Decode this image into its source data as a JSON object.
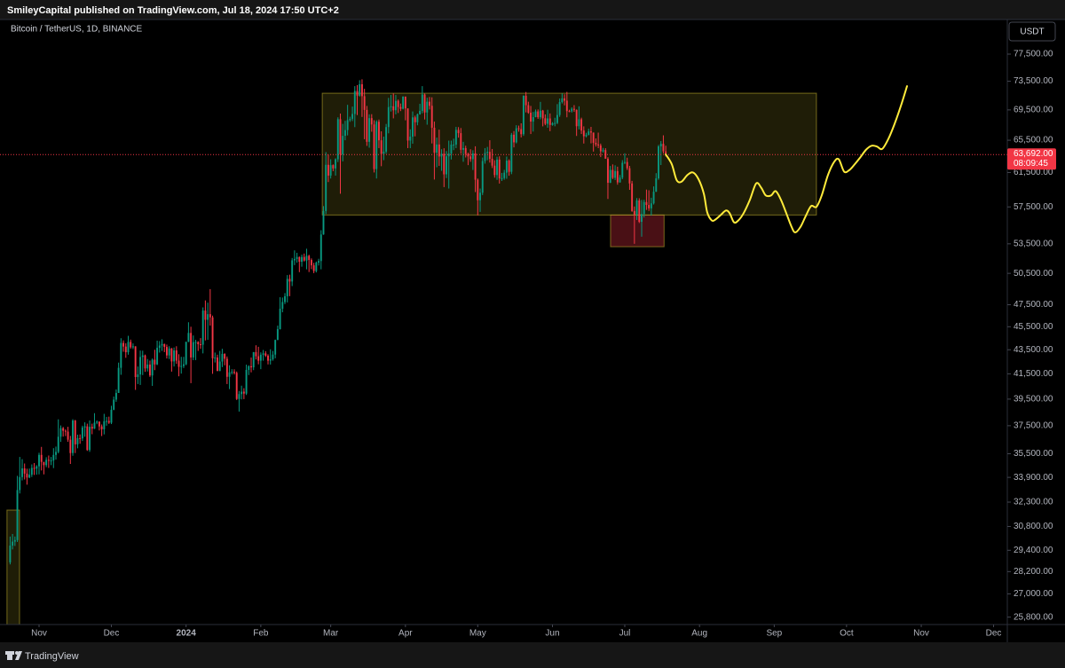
{
  "chart_data": {
    "type": "candlestick",
    "header": "SmileyCapital published on TradingView.com, Jul 18, 2024 17:50 UTC+2",
    "symbol": "Bitcoin / TetherUS, 1D, BINANCE",
    "currency": "USDT",
    "footer": "TradingView",
    "up_color": "#089981",
    "down_color": "#f23645",
    "log_scale": true,
    "grid": false,
    "ylim": [
      25430,
      82920
    ],
    "yticks": [
      {
        "value": 77500,
        "label": "77,500.00"
      },
      {
        "value": 73500,
        "label": "73,500.00"
      },
      {
        "value": 69500,
        "label": "69,500.00"
      },
      {
        "value": 65500,
        "label": "65,500.00"
      },
      {
        "value": 61500,
        "label": "61,500.00"
      },
      {
        "value": 57500,
        "label": "57,500.00"
      },
      {
        "value": 53500,
        "label": "53,500.00"
      },
      {
        "value": 50500,
        "label": "50,500.00"
      },
      {
        "value": 47500,
        "label": "47,500.00"
      },
      {
        "value": 45500,
        "label": "45,500.00"
      },
      {
        "value": 43500,
        "label": "43,500.00"
      },
      {
        "value": 41500,
        "label": "41,500.00"
      },
      {
        "value": 39500,
        "label": "39,500.00"
      },
      {
        "value": 37500,
        "label": "37,500.00"
      },
      {
        "value": 35500,
        "label": "35,500.00"
      },
      {
        "value": 33900,
        "label": "33,900.00"
      },
      {
        "value": 32300,
        "label": "32,300.00"
      },
      {
        "value": 30800,
        "label": "30,800.00"
      },
      {
        "value": 29400,
        "label": "29,400.00"
      },
      {
        "value": 28200,
        "label": "28,200.00"
      },
      {
        "value": 27000,
        "label": "27,000.00"
      },
      {
        "value": 25800,
        "label": "25,800.00"
      }
    ],
    "xlim": [
      -4.2,
      413.7
    ],
    "xticks": [
      {
        "value": 12,
        "label": "Nov"
      },
      {
        "value": 42,
        "label": "Dec"
      },
      {
        "value": 73,
        "label": "2024"
      },
      {
        "value": 104,
        "label": "Feb"
      },
      {
        "value": 133,
        "label": "Mar"
      },
      {
        "value": 164,
        "label": "Apr"
      },
      {
        "value": 194,
        "label": "May"
      },
      {
        "value": 225,
        "label": "Jun"
      },
      {
        "value": 255,
        "label": "Jul"
      },
      {
        "value": 286,
        "label": "Aug"
      },
      {
        "value": 317,
        "label": "Sep"
      },
      {
        "value": 347,
        "label": "Oct"
      },
      {
        "value": 378,
        "label": "Nov"
      },
      {
        "value": 408,
        "label": "Dec"
      }
    ],
    "open": [
      28715,
      29670,
      29900,
      29990,
      33070,
      33920,
      34500,
      34150,
      33890,
      34080,
      34530,
      34480,
      34640,
      35420,
      34940,
      34720,
      35080,
      35040,
      35040,
      35420,
      35630,
      36700,
      37320,
      37130,
      37070,
      36490,
      35550,
      37880,
      36160,
      36600,
      36580,
      37370,
      37450,
      35760,
      37420,
      37290,
      37720,
      37800,
      37450,
      37240,
      37830,
      37850,
      37720,
      38690,
      39460,
      39980,
      41990,
      44080,
      43770,
      43290,
      44170,
      43710,
      43790,
      41240,
      41450,
      42890,
      43020,
      41940,
      42260,
      41370,
      42660,
      42270,
      43660,
      43860,
      43990,
      43740,
      43020,
      43610,
      42520,
      43440,
      42580,
      42070,
      42140,
      42280,
      44180,
      44950,
      42850,
      44150,
      44160,
      43970,
      43930,
      46960,
      46120,
      46630,
      46340,
      42780,
      42840,
      41730,
      42510,
      43150,
      42740,
      41260,
      41620,
      41660,
      41580,
      39510,
      39890,
      40080,
      39930,
      41820,
      42120,
      42030,
      43300,
      42950,
      42580,
      43080,
      43190,
      43000,
      42580,
      42700,
      43090,
      44340,
      45290,
      47130,
      47750,
      48290,
      49960,
      49700,
      51800,
      51940,
      52140,
      51660,
      52140,
      51780,
      52260,
      51840,
      51300,
      50730,
      51570,
      51730,
      54480,
      57040,
      62430,
      61130,
      62390,
      61990,
      63110,
      68250,
      63720,
      66070,
      66810,
      68120,
      68300,
      68950,
      72120,
      71460,
      73070,
      71390,
      69500,
      65300,
      68390,
      67550,
      61910,
      67910,
      65490,
      63780,
      64060,
      67210,
      69880,
      69990,
      69450,
      70740,
      69890,
      69650,
      71330,
      69700,
      65460,
      65960,
      68490,
      67840,
      68900,
      69360,
      71620,
      69150,
      70620,
      70060,
      67120,
      63920,
      64960,
      63450,
      63790,
      61280,
      63470,
      63820,
      64940,
      64940,
      66840,
      66410,
      64290,
      64500,
      63770,
      63460,
      63120,
      63840,
      60640,
      58250,
      59120,
      62890,
      63890,
      64030,
      63160,
      62330,
      61190,
      63070,
      60790,
      60830,
      61480,
      62940,
      61580,
      66210,
      65230,
      67050,
      66940,
      66280,
      71450,
      70140,
      69120,
      67930,
      68530,
      69290,
      68510,
      69400,
      68370,
      67640,
      68350,
      67490,
      67710,
      67750,
      68810,
      70570,
      71080,
      70760,
      69340,
      69310,
      69650,
      69510,
      67320,
      68240,
      66750,
      66010,
      66190,
      66640,
      66490,
      65170,
      64960,
      64830,
      64100,
      64250,
      63180,
      60280,
      61810,
      60860,
      61670,
      60320,
      60890,
      62680,
      62770,
      62020,
      60200,
      57040,
      56640,
      58230,
      55850,
      56710,
      58050,
      57720,
      57340,
      57900,
      59230,
      60800,
      64720,
      65040,
      64090
    ],
    "high": [
      30200,
      30350,
      30200,
      34000,
      35280,
      35130,
      34830,
      34480,
      34490,
      34770,
      34860,
      34720,
      35570,
      35980,
      34940,
      35260,
      35380,
      35280,
      35890,
      36000,
      37970,
      37520,
      37410,
      37230,
      37420,
      36760,
      37980,
      37930,
      36850,
      36870,
      37500,
      37750,
      37650,
      37890,
      37650,
      38430,
      37890,
      37820,
      37590,
      38380,
      38150,
      38170,
      38990,
      39700,
      40250,
      42420,
      44490,
      44300,
      44050,
      44700,
      44370,
      44040,
      43800,
      42100,
      43430,
      43420,
      43090,
      42720,
      42590,
      42760,
      43500,
      44280,
      44240,
      44400,
      44020,
      43940,
      43800,
      43650,
      43690,
      43800,
      43120,
      42900,
      42900,
      44180,
      45900,
      45500,
      44730,
      44350,
      44230,
      44500,
      47250,
      47900,
      47690,
      48970,
      46500,
      43260,
      43080,
      43400,
      43580,
      43200,
      42930,
      42200,
      41880,
      41870,
      41690,
      40130,
      40550,
      40350,
      42250,
      42200,
      42840,
      43300,
      43880,
      43750,
      43280,
      43480,
      43380,
      43120,
      43540,
      43400,
      44370,
      45600,
      48200,
      48170,
      48590,
      50330,
      50370,
      52040,
      52820,
      52570,
      52190,
      52380,
      52490,
      52990,
      52370,
      52000,
      51550,
      51680,
      51960,
      54940,
      57590,
      64000,
      63680,
      63110,
      62480,
      63230,
      68500,
      69000,
      67630,
      68030,
      70190,
      68580,
      69950,
      72800,
      72950,
      73650,
      73780,
      72420,
      70040,
      68900,
      68920,
      68110,
      68100,
      68200,
      66650,
      65970,
      67620,
      71150,
      71560,
      71770,
      71550,
      70920,
      70370,
      71370,
      71340,
      69700,
      66910,
      69290,
      68720,
      69000,
      70330,
      72800,
      71750,
      71170,
      71280,
      71230,
      67930,
      65840,
      66870,
      64360,
      64480,
      64130,
      65450,
      65450,
      65700,
      67230,
      67200,
      67080,
      65300,
      64800,
      63920,
      64360,
      64230,
      64730,
      60780,
      59600,
      63320,
      64500,
      64650,
      65500,
      64390,
      62990,
      63420,
      63470,
      61450,
      61820,
      63450,
      63100,
      66440,
      66680,
      67450,
      67400,
      67700,
      71500,
      71980,
      70620,
      70040,
      69220,
      69550,
      69560,
      70600,
      69500,
      68890,
      69520,
      69020,
      67860,
      68440,
      70290,
      71060,
      71760,
      71650,
      71990,
      69520,
      69850,
      70150,
      69560,
      69990,
      68450,
      67300,
      66460,
      66990,
      67230,
      66490,
      65730,
      66480,
      65070,
      64520,
      64490,
      63370,
      62290,
      62480,
      62370,
      62200,
      61200,
      63000,
      63850,
      63300,
      62300,
      60500,
      57550,
      58500,
      58480,
      58290,
      58300,
      59480,
      59400,
      58540,
      59850,
      61420,
      64900,
      65390,
      66130,
      64800
    ],
    "low": [
      28600,
      29450,
      29650,
      29880,
      32850,
      33700,
      33760,
      33420,
      33850,
      33930,
      34060,
      34080,
      34100,
      34360,
      34100,
      34580,
      34530,
      34720,
      34520,
      35100,
      35530,
      36330,
      36710,
      36750,
      36340,
      34800,
      35360,
      35550,
      35880,
      36200,
      36400,
      36700,
      35700,
      35630,
      36880,
      37260,
      37610,
      37150,
      36750,
      36870,
      37500,
      37630,
      37620,
      38650,
      39290,
      39980,
      41420,
      43330,
      42820,
      43080,
      43580,
      43560,
      40220,
      40680,
      40610,
      41400,
      41660,
      41690,
      41250,
      40530,
      41800,
      42210,
      43260,
      43400,
      43300,
      42760,
      42720,
      41680,
      42100,
      42320,
      41300,
      41520,
      41970,
      42200,
      44150,
      40750,
      42620,
      42630,
      43400,
      43580,
      43190,
      44300,
      44350,
      45600,
      41500,
      42430,
      41720,
      41720,
      42050,
      42200,
      40680,
      40280,
      41450,
      41450,
      39430,
      38550,
      39480,
      39500,
      39820,
      41400,
      41620,
      41800,
      42680,
      42280,
      41880,
      42580,
      42890,
      42270,
      42260,
      42580,
      42780,
      44330,
      45250,
      46800,
      47560,
      47710,
      48300,
      49260,
      51320,
      51570,
      50620,
      51160,
      51680,
      50900,
      50630,
      50920,
      50520,
      50590,
      51280,
      50900,
      54450,
      56700,
      60360,
      60780,
      61660,
      61130,
      62770,
      59000,
      62850,
      65500,
      66120,
      67900,
      68000,
      67200,
      68800,
      71330,
      68550,
      65630,
      64780,
      64550,
      66600,
      61500,
      60780,
      64500,
      62260,
      63000,
      63800,
      66390,
      69280,
      68360,
      68900,
      69080,
      69340,
      69560,
      68100,
      64500,
      64490,
      65060,
      66000,
      67440,
      68860,
      69040,
      68210,
      67520,
      69560,
      65090,
      60660,
      62130,
      62300,
      61700,
      59770,
      60830,
      59600,
      63080,
      64250,
      64500,
      65830,
      63810,
      62800,
      63330,
      62390,
      62800,
      61800,
      59190,
      56550,
      56940,
      58850,
      62570,
      62990,
      62700,
      62040,
      60880,
      60620,
      60180,
      60490,
      60630,
      60750,
      61110,
      61300,
      64590,
      65100,
      66600,
      65860,
      66060,
      69160,
      68980,
      66300,
      66620,
      68500,
      68290,
      68230,
      67300,
      67450,
      67120,
      66670,
      67390,
      67310,
      67600,
      68560,
      70380,
      70120,
      68500,
      69190,
      69140,
      69230,
      66050,
      66900,
      66300,
      65080,
      65870,
      66120,
      65100,
      64060,
      64690,
      64500,
      63380,
      63940,
      63180,
      58400,
      60240,
      60710,
      60600,
      60050,
      60300,
      60700,
      62520,
      61800,
      59450,
      56950,
      53500,
      56050,
      55720,
      54250,
      56320,
      57160,
      57050,
      56530,
      57770,
      59210,
      60630,
      62400,
      63830,
      63450
    ],
    "close": [
      29670,
      29900,
      29990,
      33070,
      33920,
      34500,
      34150,
      33890,
      34080,
      34530,
      34480,
      34640,
      35420,
      34940,
      34720,
      35080,
      35040,
      35040,
      35420,
      35630,
      36700,
      37320,
      37130,
      37070,
      36490,
      35550,
      37880,
      36160,
      36600,
      36580,
      37370,
      37450,
      35760,
      37420,
      37290,
      37720,
      37800,
      37450,
      37240,
      37830,
      37850,
      37720,
      38690,
      39460,
      39980,
      41990,
      44080,
      43770,
      43290,
      44170,
      43710,
      43790,
      41240,
      41450,
      42890,
      43020,
      41940,
      42260,
      41370,
      42660,
      42270,
      43660,
      43860,
      43990,
      43740,
      43020,
      43610,
      42520,
      43440,
      42580,
      42070,
      42140,
      42280,
      44180,
      44950,
      42850,
      44150,
      44160,
      43970,
      43930,
      46960,
      46120,
      46630,
      46340,
      42780,
      42840,
      41730,
      42510,
      43150,
      42740,
      41260,
      41620,
      41660,
      41580,
      39510,
      39890,
      40080,
      39930,
      41820,
      42120,
      42030,
      43300,
      42950,
      42580,
      43080,
      43190,
      43000,
      42580,
      42700,
      43090,
      44340,
      45290,
      47130,
      47750,
      48290,
      49960,
      49700,
      51800,
      51940,
      52140,
      51660,
      52140,
      51780,
      52260,
      51840,
      51300,
      50730,
      51570,
      51730,
      54480,
      57040,
      62430,
      61130,
      62390,
      61990,
      63110,
      68250,
      63720,
      66070,
      66810,
      68120,
      68300,
      68950,
      72120,
      71460,
      73070,
      71390,
      69500,
      65300,
      68390,
      67550,
      61910,
      67910,
      65490,
      63780,
      64060,
      67210,
      69880,
      69990,
      69450,
      70740,
      69890,
      69650,
      71330,
      69700,
      65460,
      65960,
      68490,
      67840,
      68900,
      69360,
      71620,
      69150,
      70620,
      70060,
      67120,
      63920,
      64960,
      63450,
      63790,
      61280,
      63470,
      63820,
      64940,
      64940,
      66840,
      66410,
      64290,
      64500,
      63770,
      63460,
      63120,
      63840,
      60640,
      58250,
      59120,
      62890,
      63890,
      64030,
      63160,
      62330,
      61190,
      63070,
      60790,
      60830,
      61480,
      62940,
      61580,
      66210,
      65230,
      67050,
      66940,
      66280,
      71450,
      70140,
      69120,
      67930,
      68530,
      69290,
      68510,
      69400,
      68370,
      67640,
      68350,
      67490,
      67710,
      67750,
      68810,
      70570,
      71080,
      70760,
      69340,
      69310,
      69650,
      69510,
      67320,
      68240,
      66750,
      66010,
      66190,
      66640,
      66490,
      65170,
      64960,
      64830,
      64100,
      64250,
      63180,
      60280,
      61810,
      60860,
      61670,
      60320,
      60890,
      62680,
      62770,
      62020,
      60200,
      57040,
      56640,
      58230,
      55850,
      56710,
      58050,
      57720,
      57340,
      57900,
      59230,
      60800,
      64720,
      65040,
      64090,
      63692
    ],
    "last_price": {
      "value": 63692,
      "label": "63,692.00"
    },
    "countdown": "08:09:45",
    "last_price_color": "#f23645",
    "zones": [
      {
        "x": [
          129.5,
          334.5
        ],
        "y": [
          56600,
          71800
        ],
        "color": "#ffeb3b"
      },
      {
        "x": [
          249.1,
          271.3
        ],
        "y": [
          53200,
          56600
        ],
        "color": "#f23645"
      },
      {
        "x": [
          -1.3,
          3.9
        ],
        "y": [
          25430,
          31800
        ],
        "color": "#ffeb3b"
      }
    ],
    "projection": {
      "color": "#ffeb3b",
      "x": [
        272,
        274.5,
        276.5,
        278.5,
        281,
        283.3,
        285.6,
        287.8,
        289.2,
        291.1,
        292.6,
        294.8,
        297,
        298.5,
        300.3,
        302.1,
        304.3,
        306.9,
        309.5,
        311.6,
        313.5,
        315.7,
        317.6,
        319.8,
        322,
        324.2,
        325.7,
        327.9,
        330.1,
        332.3,
        334.5,
        336.7,
        339.3,
        341.9,
        343.8,
        346,
        348.2,
        350.4,
        352.6,
        355.1,
        357.4,
        359.6,
        361.8,
        364.4,
        366.9,
        369.5,
        372.1
      ],
      "y": [
        63700,
        62500,
        60600,
        60400,
        61200,
        61500,
        60700,
        59000,
        56900,
        56000,
        56100,
        56600,
        57100,
        56800,
        55800,
        56000,
        56800,
        58300,
        60200,
        59700,
        58800,
        58800,
        59300,
        58300,
        56800,
        55300,
        54700,
        55300,
        56500,
        57600,
        57500,
        58800,
        61200,
        62800,
        63100,
        61600,
        61800,
        62500,
        63300,
        64300,
        64800,
        64700,
        64400,
        65700,
        67600,
        70000,
        72800
      ]
    }
  }
}
